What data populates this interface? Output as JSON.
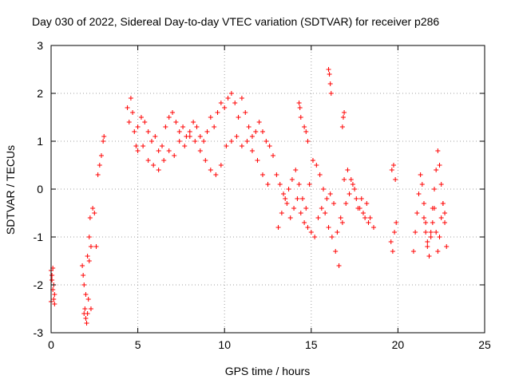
{
  "chart_data": {
    "type": "scatter",
    "title": "Day 030 of 2022, Sidereal Day-to-day VTEC variation (SDTVAR) for receiver p286",
    "xlabel": "GPS time / hours",
    "ylabel": "SDTVAR / TECUs",
    "xlim": [
      0,
      25
    ],
    "ylim": [
      -3,
      3
    ],
    "xticks": [
      0,
      5,
      10,
      15,
      20,
      25
    ],
    "yticks": [
      -3,
      -2,
      -1,
      0,
      1,
      2,
      3
    ],
    "grid": true,
    "marker": "+",
    "color": "#ff0000",
    "series": [
      {
        "name": "SDTVAR",
        "x": [
          0.0,
          0.05,
          0.1,
          0.15,
          0.2,
          0.0,
          0.05,
          0.1,
          0.15,
          0.2,
          1.8,
          1.85,
          1.9,
          1.95,
          2.0,
          2.05,
          2.1,
          2.15,
          2.2,
          2.25,
          2.3,
          1.9,
          2.0,
          2.1,
          2.2,
          2.3,
          2.4,
          2.5,
          2.6,
          2.7,
          2.8,
          2.9,
          3.0,
          3.05,
          4.4,
          4.5,
          4.6,
          4.7,
          4.8,
          4.9,
          5.0,
          5.2,
          5.4,
          5.6,
          5.8,
          6.0,
          6.2,
          6.4,
          6.6,
          6.8,
          7.0,
          7.2,
          7.4,
          7.6,
          7.8,
          8.0,
          8.2,
          8.4,
          8.6,
          8.8,
          9.0,
          9.2,
          9.4,
          9.6,
          9.8,
          10.0,
          10.2,
          10.4,
          10.6,
          10.8,
          11.0,
          11.2,
          11.4,
          11.6,
          11.8,
          12.0,
          12.2,
          12.4,
          12.6,
          12.8,
          5.0,
          5.3,
          5.6,
          5.9,
          6.2,
          6.5,
          6.8,
          7.1,
          7.4,
          7.7,
          8.0,
          8.3,
          8.6,
          8.9,
          9.2,
          9.5,
          9.8,
          10.1,
          10.4,
          10.7,
          11.0,
          11.3,
          11.6,
          11.9,
          12.2,
          12.5,
          13.0,
          13.2,
          13.4,
          13.6,
          13.8,
          14.0,
          14.2,
          14.4,
          14.6,
          14.8,
          15.0,
          15.2,
          15.4,
          15.6,
          15.8,
          16.0,
          16.2,
          16.4,
          16.6,
          16.8,
          17.0,
          17.2,
          17.4,
          17.6,
          17.8,
          18.0,
          18.2,
          18.4,
          18.6,
          13.1,
          13.3,
          13.5,
          13.7,
          13.9,
          14.1,
          14.3,
          14.5,
          14.7,
          14.9,
          15.1,
          15.3,
          15.5,
          15.7,
          15.9,
          16.1,
          16.3,
          16.5,
          16.7,
          16.9,
          17.1,
          17.3,
          17.5,
          17.7,
          17.9,
          18.1,
          18.3,
          14.3,
          14.35,
          14.4,
          14.6,
          14.7,
          14.8,
          16.0,
          16.05,
          16.1,
          16.15,
          16.8,
          16.85,
          16.9,
          19.6,
          19.7,
          19.8,
          19.9,
          19.65,
          19.75,
          19.85,
          20.9,
          21.0,
          21.1,
          21.2,
          21.3,
          21.4,
          21.5,
          21.6,
          21.7,
          21.8,
          21.9,
          22.0,
          22.1,
          22.2,
          22.3,
          22.4,
          22.5,
          22.6,
          22.7,
          22.8,
          21.5,
          21.6,
          21.7,
          21.8,
          21.9,
          22.0,
          22.1,
          22.2,
          22.3,
          22.4,
          22.5,
          22.6,
          22.7
        ],
        "y": [
          -1.7,
          -1.9,
          -2.1,
          -2.3,
          -2.4,
          -2.35,
          -1.8,
          -1.65,
          -2.0,
          -2.2,
          -1.6,
          -1.8,
          -2.0,
          -2.5,
          -2.7,
          -2.8,
          -2.6,
          -2.3,
          -1.0,
          -0.6,
          -1.2,
          -2.6,
          -2.2,
          -1.4,
          -1.5,
          -2.5,
          -0.4,
          -0.5,
          -1.2,
          0.3,
          0.5,
          0.7,
          1.0,
          1.1,
          1.7,
          1.4,
          1.9,
          1.6,
          1.2,
          0.9,
          1.3,
          1.5,
          1.4,
          1.2,
          1.0,
          1.1,
          0.8,
          0.9,
          1.3,
          1.5,
          1.6,
          1.4,
          1.2,
          1.3,
          1.1,
          1.2,
          1.4,
          1.3,
          1.1,
          1.0,
          1.2,
          1.5,
          1.3,
          1.6,
          1.8,
          1.7,
          1.9,
          2.0,
          1.8,
          1.5,
          1.9,
          1.6,
          1.3,
          1.1,
          1.2,
          1.4,
          1.2,
          1.0,
          0.9,
          0.7,
          0.8,
          0.9,
          0.6,
          0.5,
          0.4,
          0.6,
          0.8,
          0.7,
          1.0,
          0.9,
          1.1,
          1.0,
          0.8,
          0.6,
          0.4,
          0.3,
          0.5,
          0.9,
          1.0,
          1.1,
          0.9,
          1.0,
          0.8,
          0.6,
          0.3,
          0.1,
          0.3,
          0.1,
          -0.1,
          -0.3,
          -0.6,
          -0.4,
          -0.2,
          -0.5,
          -0.7,
          -0.8,
          -0.9,
          -1.0,
          -0.6,
          -0.4,
          -0.5,
          -0.8,
          -1.0,
          -1.3,
          -1.6,
          -0.7,
          -0.3,
          -0.1,
          0.1,
          -0.2,
          -0.4,
          -0.5,
          -0.3,
          -0.6,
          -0.8,
          -0.8,
          -0.5,
          -0.2,
          0.0,
          0.2,
          0.4,
          0.1,
          -0.2,
          -0.4,
          0.1,
          0.6,
          0.5,
          0.3,
          0.0,
          -0.2,
          -0.1,
          -0.3,
          -0.9,
          -0.6,
          0.2,
          0.4,
          0.2,
          0.0,
          -0.4,
          -0.2,
          -0.6,
          -0.7,
          1.8,
          1.7,
          1.5,
          1.3,
          1.2,
          1.0,
          2.5,
          2.4,
          2.2,
          2.0,
          1.3,
          1.5,
          1.6,
          -1.1,
          -1.3,
          -0.9,
          -0.7,
          0.4,
          0.5,
          0.2,
          -1.3,
          -0.9,
          -0.5,
          -0.1,
          0.3,
          0.1,
          -0.3,
          -0.7,
          -1.1,
          -1.4,
          -0.9,
          -0.4,
          0.0,
          0.4,
          0.8,
          0.5,
          0.1,
          -0.3,
          -0.7,
          -1.2,
          -0.6,
          -0.9,
          -1.2,
          -1.4,
          -1.0,
          -0.7,
          -0.4,
          -0.9,
          -1.3,
          -1.0,
          -0.6,
          -0.3,
          -0.5
        ]
      }
    ]
  }
}
